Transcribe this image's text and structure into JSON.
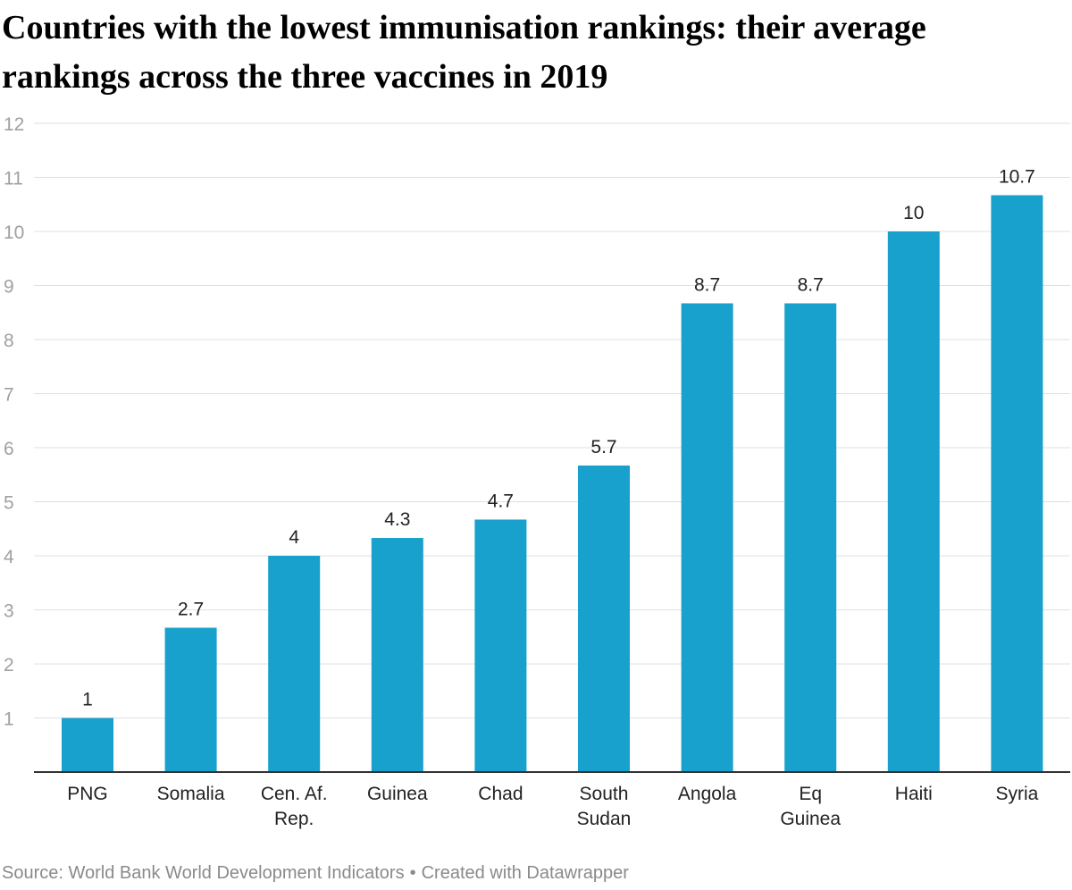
{
  "title": "Countries with the lowest immunisation rankings: their average rankings across the three vaccines in 2019",
  "source": {
    "text": "Source: World Bank World Development Indicators",
    "separator": "•",
    "credit": "Created with Datawrapper"
  },
  "colors": {
    "bar": "#18a1cd",
    "grid": "#e0e0e0",
    "baseline": "#333333",
    "tick_label": "#a0a0a0",
    "category_label": "#222222",
    "value_label": "#222222",
    "title": "#000000",
    "source": "#8a8a8a"
  },
  "chart_data": {
    "type": "bar",
    "title": "Countries with the lowest immunisation rankings: their average rankings across the three vaccines in 2019",
    "xlabel": "",
    "ylabel": "",
    "categories": [
      [
        "PNG"
      ],
      [
        "Somalia"
      ],
      [
        "Cen. Af.",
        "Rep."
      ],
      [
        "Guinea"
      ],
      [
        "Chad"
      ],
      [
        "South",
        "Sudan"
      ],
      [
        "Angola"
      ],
      [
        "Eq",
        "Guinea"
      ],
      [
        "Haiti"
      ],
      [
        "Syria"
      ]
    ],
    "values": [
      1,
      2.67,
      4,
      4.33,
      4.67,
      5.67,
      8.67,
      8.67,
      10,
      10.67
    ],
    "value_labels": [
      "1",
      "2.7",
      "4",
      "4.3",
      "4.7",
      "5.7",
      "8.7",
      "8.7",
      "10",
      "10.7"
    ],
    "ylim": [
      0,
      12
    ],
    "yticks": [
      1,
      2,
      3,
      4,
      5,
      6,
      7,
      8,
      9,
      10,
      11,
      12
    ],
    "grid": true,
    "legend": "none"
  }
}
